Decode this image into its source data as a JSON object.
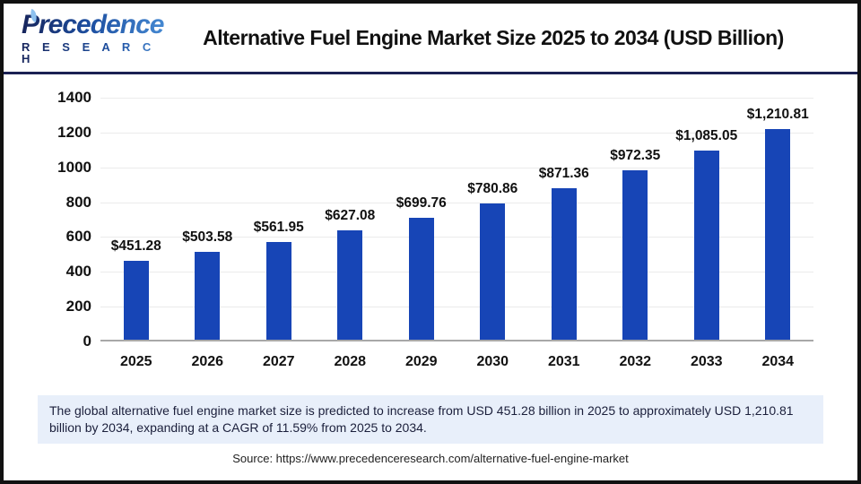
{
  "logo": {
    "name": "Precedence",
    "subtitle": "R E S E A R C H"
  },
  "header": {
    "title": "Alternative Fuel Engine Market Size 2025 to 2034 (USD Billion)"
  },
  "chart_data": {
    "type": "bar",
    "title": "Alternative Fuel Engine Market Size 2025 to 2034 (USD Billion)",
    "categories": [
      "2025",
      "2026",
      "2027",
      "2028",
      "2029",
      "2030",
      "2031",
      "2032",
      "2033",
      "2034"
    ],
    "values": [
      451.28,
      503.58,
      561.95,
      627.08,
      699.76,
      780.86,
      871.36,
      972.35,
      1085.05,
      1210.81
    ],
    "value_labels": [
      "$451.28",
      "$503.58",
      "$561.95",
      "$627.08",
      "$699.76",
      "$780.86",
      "$871.36",
      "$972.35",
      "$1,085.05",
      "$1,210.81"
    ],
    "xlabel": "",
    "ylabel": "",
    "ylim": [
      0,
      1400
    ],
    "yticks": [
      0,
      200,
      400,
      600,
      800,
      1000,
      1200,
      1400
    ],
    "grid": true,
    "legend": false,
    "bar_color": "#1745b6"
  },
  "footer": {
    "description": "The global alternative fuel engine market size is predicted to increase from USD 451.28 billion in 2025 to approximately USD 1,210.81 billion by 2034, expanding at a CAGR of 11.59% from 2025 to 2034.",
    "source": "Source: https://www.precedenceresearch.com/alternative-fuel-engine-market"
  },
  "colors": {
    "bar": "#1745b6",
    "header_divider": "#1b2153",
    "description_background": "#e8effa",
    "gridline": "#ebebeb",
    "axis_line": "#a8a8a8",
    "frame_border": "#111111"
  }
}
